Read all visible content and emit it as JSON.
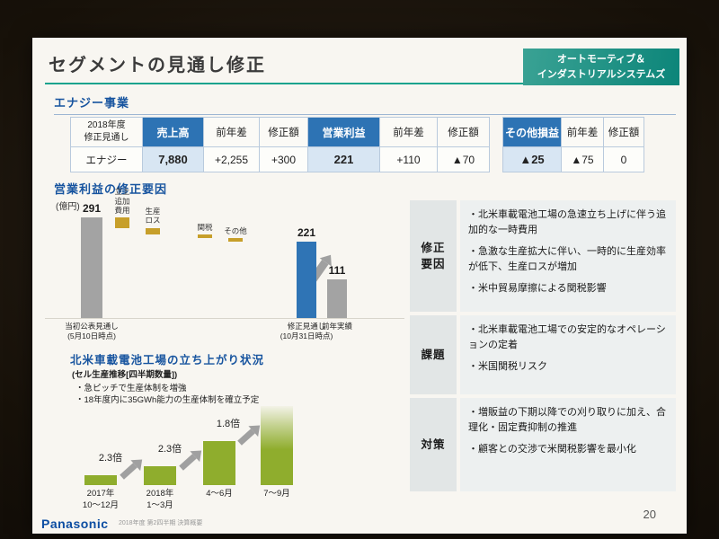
{
  "slide": {
    "title": "セグメントの見通し修正",
    "badge": {
      "line1": "オートモーティブ＆",
      "line2": "インダストリアルシステムズ"
    },
    "footer": {
      "logo": "Panasonic",
      "note": "2018年度 第2四半期 決算概要",
      "page": "20"
    }
  },
  "energy": {
    "heading": "エナジー事業",
    "table": {
      "corner": "2018年度\n修正見通し",
      "row_label": "エナジー",
      "main": {
        "headers": [
          {
            "label": "売上高",
            "blue": true
          },
          {
            "label": "前年差"
          },
          {
            "label": "修正額"
          },
          {
            "label": "営業利益",
            "blue": true
          },
          {
            "label": "前年差"
          },
          {
            "label": "修正額"
          }
        ],
        "values": [
          {
            "text": "7,880",
            "emph": true
          },
          {
            "text": "+2,255"
          },
          {
            "text": "+300"
          },
          {
            "text": "221",
            "emph": true
          },
          {
            "text": "+110"
          },
          {
            "text": "▲70"
          }
        ]
      },
      "sub": {
        "headers": [
          {
            "label": "その他損益",
            "blue": true
          },
          {
            "label": "前年差"
          },
          {
            "label": "修正額"
          }
        ],
        "values": [
          {
            "text": "▲25",
            "emph": true
          },
          {
            "text": "▲75"
          },
          {
            "text": "0"
          }
        ]
      }
    }
  },
  "chart_data": [
    {
      "type": "waterfall",
      "title": "営業利益の修正要因",
      "unit": "(億円)",
      "bars": [
        {
          "kind": "total",
          "label": "当初公表見通し",
          "sublabel": "(5月10日時点)",
          "value": 291,
          "color": "gray"
        },
        {
          "kind": "delta",
          "label": "立上追加費用",
          "value": -30
        },
        {
          "kind": "delta",
          "label": "生産ロス",
          "value": -20
        },
        {
          "kind": "delta",
          "label": "関税",
          "value": -10
        },
        {
          "kind": "delta",
          "label": "その他",
          "value": -10
        },
        {
          "kind": "total",
          "label": "修正見通し",
          "sublabel": "(10月31日時点)",
          "value": 221,
          "color": "blue"
        },
        {
          "kind": "total",
          "label": "前年実績",
          "value": 111,
          "color": "gray"
        }
      ]
    },
    {
      "type": "bar",
      "title": "北米車載電池工場の立ち上がり状況",
      "subtitle": "(セル生産推移[四半期数量])",
      "notes": [
        "・急ピッチで生産体制を増強",
        "・18年度内に35GWh能力の生産体制を確立予定"
      ],
      "categories": [
        "2017年\n10～12月",
        "2018年\n1～3月",
        "4～6月",
        "7～9月"
      ],
      "values": [
        1,
        2.3,
        5.3,
        9.5
      ],
      "multipliers": [
        "2.3倍",
        "2.3倍",
        "1.8倍"
      ],
      "ylabel": "",
      "xlabel": "",
      "legend": "none",
      "grid": false
    }
  ],
  "panel": {
    "rows": [
      {
        "label": "修正\n要因",
        "bullets": [
          "・北米車載電池工場の急速立ち上げに伴う追加的な一時費用",
          "・急激な生産拡大に伴い、一時的に生産効率が低下、生産ロスが増加",
          "・米中貿易摩擦による関税影響"
        ]
      },
      {
        "label": "課題",
        "bullets": [
          "・北米車載電池工場での安定的なオペレーションの定着",
          "・米国関税リスク"
        ]
      },
      {
        "label": "対策",
        "bullets": [
          "・増販益の下期以降での刈り取りに加え、合理化・固定費抑制の推進",
          "・顧客との交渉で米関税影響を最小化"
        ]
      }
    ]
  }
}
